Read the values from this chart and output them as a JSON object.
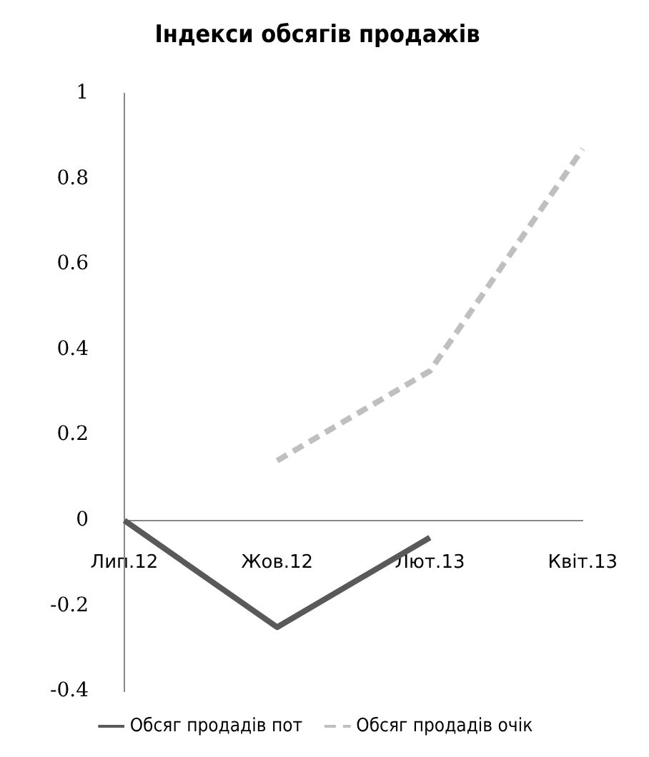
{
  "chart_data": {
    "type": "line",
    "title": "Індекси обсягів продажів",
    "categories": [
      "Лип.12",
      "Жов.12",
      "Лют.13",
      "Квіт.13"
    ],
    "series": [
      {
        "name": "Обсяг продадів пот",
        "color": "#595959",
        "values": [
          0,
          -0.25,
          -0.04,
          null
        ],
        "line_style": "solid"
      },
      {
        "name": "Обсяг продадів очік",
        "color": "#bfbfbf",
        "values": [
          null,
          0.14,
          0.35,
          0.87
        ],
        "line_style": "dashed"
      }
    ],
    "ylim": [
      -0.4,
      1
    ],
    "yticks": [
      -0.4,
      -0.2,
      0,
      0.2,
      0.4,
      0.6,
      0.8,
      1
    ],
    "grid": false,
    "legend": "bottom",
    "marker": "none"
  }
}
